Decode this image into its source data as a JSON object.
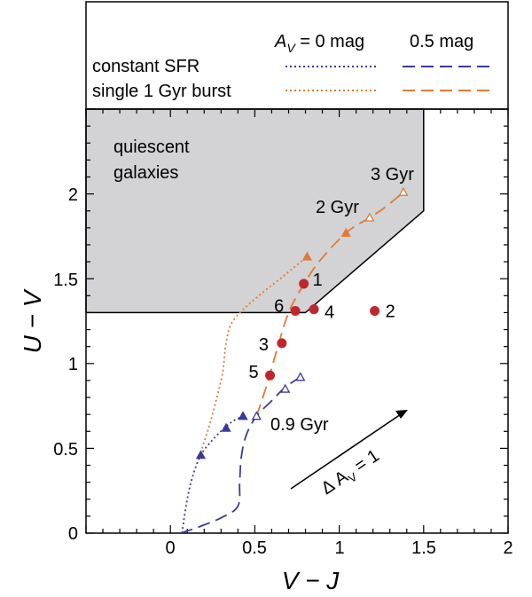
{
  "chart_data": {
    "type": "line",
    "xlabel": "V − J",
    "ylabel": "U − V",
    "xlim": [
      -0.5,
      2.0
    ],
    "ylim": [
      0,
      2.5
    ],
    "x_ticks": [
      "0",
      "0.5",
      "1",
      "1.5",
      "2"
    ],
    "y_ticks": [
      "0",
      "0.5",
      "1",
      "1.5",
      "2"
    ],
    "legend": {
      "col_av0": "A",
      "col_av0_sub": "V",
      "col_av0_rest": " = 0 mag",
      "col_av05": "0.5 mag",
      "rows": [
        "constant SFR",
        "single 1 Gyr burst"
      ]
    },
    "region": {
      "label_line1": "quiescent",
      "label_line2": "galaxies",
      "color": "#d3d3d5",
      "boundary": [
        [
          -0.5,
          1.3
        ],
        [
          0.8,
          1.3
        ],
        [
          1.5,
          1.9
        ],
        [
          1.5,
          2.5
        ]
      ]
    },
    "series": [
      {
        "name": "constant SFR",
        "av": "0",
        "color": "#3a3a9a",
        "style": "dotted",
        "points": [
          [
            0.07,
            0.0
          ],
          [
            0.08,
            0.08
          ],
          [
            0.1,
            0.2
          ],
          [
            0.13,
            0.33
          ],
          [
            0.18,
            0.46
          ],
          [
            0.25,
            0.55
          ],
          [
            0.32,
            0.62
          ],
          [
            0.37,
            0.66
          ],
          [
            0.43,
            0.69
          ]
        ]
      },
      {
        "name": "constant SFR",
        "av": "0.5",
        "color": "#3a3a9a",
        "style": "dashed",
        "points": [
          [
            0.06,
            0.0
          ],
          [
            0.15,
            0.03
          ],
          [
            0.3,
            0.09
          ],
          [
            0.4,
            0.16
          ],
          [
            0.41,
            0.3
          ],
          [
            0.42,
            0.45
          ],
          [
            0.45,
            0.58
          ],
          [
            0.51,
            0.69
          ],
          [
            0.6,
            0.78
          ],
          [
            0.68,
            0.86
          ],
          [
            0.77,
            0.92
          ]
        ]
      },
      {
        "name": "single 1 Gyr burst",
        "av": "0",
        "color": "#e07a35",
        "style": "dotted",
        "points": [
          [
            0.17,
            0.45
          ],
          [
            0.22,
            0.6
          ],
          [
            0.27,
            0.78
          ],
          [
            0.31,
            0.95
          ],
          [
            0.33,
            1.12
          ],
          [
            0.37,
            1.25
          ],
          [
            0.5,
            1.38
          ],
          [
            0.65,
            1.5
          ],
          [
            0.81,
            1.63
          ]
        ]
      },
      {
        "name": "single 1 Gyr burst",
        "av": "0.5",
        "color": "#e07a35",
        "style": "dashed",
        "points": [
          [
            0.51,
            0.69
          ],
          [
            0.58,
            0.9
          ],
          [
            0.63,
            1.08
          ],
          [
            0.7,
            1.3
          ],
          [
            0.78,
            1.45
          ],
          [
            0.88,
            1.6
          ],
          [
            1.04,
            1.77
          ],
          [
            1.18,
            1.86
          ],
          [
            1.27,
            1.92
          ],
          [
            1.38,
            2.01
          ]
        ]
      }
    ],
    "markers": [
      {
        "series": 0,
        "x": 0.18,
        "y": 0.46
      },
      {
        "series": 0,
        "x": 0.33,
        "y": 0.62
      },
      {
        "series": 0,
        "x": 0.43,
        "y": 0.69
      },
      {
        "series": 1,
        "x": 0.51,
        "y": 0.69,
        "open": true
      },
      {
        "series": 1,
        "x": 0.68,
        "y": 0.85,
        "open": true
      },
      {
        "series": 1,
        "x": 0.77,
        "y": 0.92,
        "open": true
      },
      {
        "series": 2,
        "x": 0.81,
        "y": 1.63
      },
      {
        "series": 2,
        "x": 1.04,
        "y": 1.77
      },
      {
        "series": 3,
        "x": 1.18,
        "y": 1.86,
        "open": true
      },
      {
        "series": 3,
        "x": 1.38,
        "y": 2.01,
        "open": true
      }
    ],
    "galaxies": {
      "color": "#c0272d",
      "points": [
        {
          "label": "1",
          "x": 0.79,
          "y": 1.47
        },
        {
          "label": "2",
          "x": 1.21,
          "y": 1.31
        },
        {
          "label": "3",
          "x": 0.66,
          "y": 1.12
        },
        {
          "label": "4",
          "x": 0.85,
          "y": 1.32
        },
        {
          "label": "5",
          "x": 0.59,
          "y": 0.93
        },
        {
          "label": "6",
          "x": 0.74,
          "y": 1.31
        }
      ]
    },
    "annotations": {
      "age_3gyr": "3 Gyr",
      "age_2gyr": "2 Gyr",
      "age_09gyr": "0.9 Gyr",
      "vector_prefix": "Δ A",
      "vector_sub": "V",
      "vector_rest": " = 1"
    }
  }
}
